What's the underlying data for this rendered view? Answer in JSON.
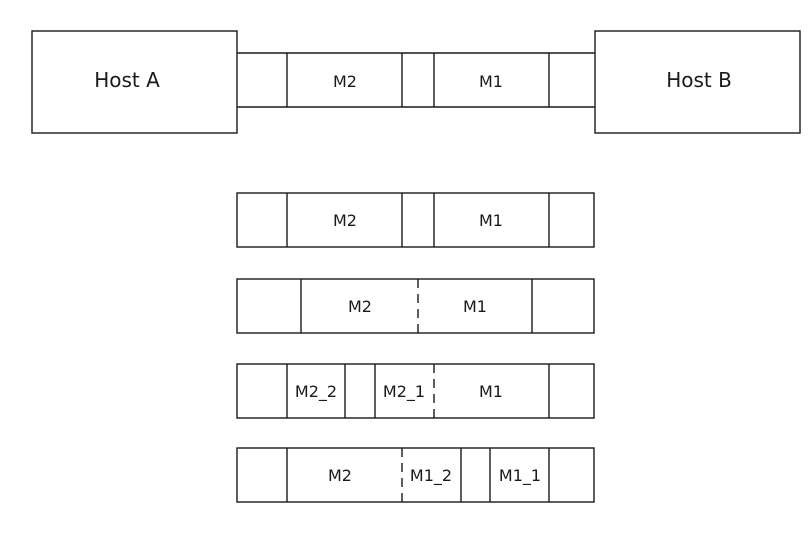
{
  "hosts": {
    "a": "Host A",
    "b": "Host B"
  },
  "link": {
    "segments": [
      "M2",
      "M1"
    ]
  },
  "rows": [
    {
      "segments": [
        "M2",
        "M1"
      ]
    },
    {
      "segments": [
        "M2",
        "M1"
      ]
    },
    {
      "segments": [
        "M2_2",
        "M2_1",
        "M1"
      ]
    },
    {
      "segments": [
        "M2",
        "M1_2",
        "M1_1"
      ]
    }
  ],
  "colors": {
    "stroke": "#1a1a1a",
    "background": "#ffffff"
  }
}
